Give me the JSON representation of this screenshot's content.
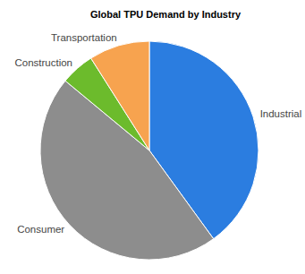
{
  "chart_data": {
    "type": "pie",
    "title": "Global TPU Demand by Industry",
    "categories": [
      "Industrial",
      "Consumer",
      "Construction",
      "Transportation"
    ],
    "values": [
      40,
      46,
      5,
      9
    ],
    "colors": [
      "#2b7de0",
      "#8d8d8d",
      "#6cbb2c",
      "#f7a34f"
    ]
  }
}
